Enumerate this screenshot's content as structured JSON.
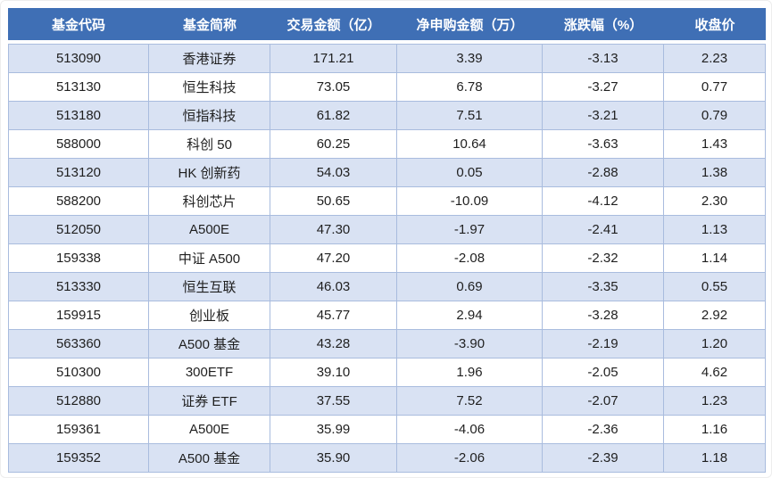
{
  "colors": {
    "header_bg": "#3f6fb5",
    "header_text": "#ffffff",
    "banded_row_bg": "#d9e2f3",
    "plain_row_bg": "#ffffff",
    "border": "#a9bcde",
    "body_text": "#1f1f1f"
  },
  "chart_data": {
    "type": "table",
    "headers": [
      "基金代码",
      "基金简称",
      "交易金额（亿）",
      "净申购金额（万）",
      "涨跌幅（%）",
      "收盘价"
    ],
    "rows": [
      [
        "513090",
        "香港证券",
        "171.21",
        "3.39",
        "-3.13",
        "2.23"
      ],
      [
        "513130",
        "恒生科技",
        "73.05",
        "6.78",
        "-3.27",
        "0.77"
      ],
      [
        "513180",
        "恒指科技",
        "61.82",
        "7.51",
        "-3.21",
        "0.79"
      ],
      [
        "588000",
        "科创 50",
        "60.25",
        "10.64",
        "-3.63",
        "1.43"
      ],
      [
        "513120",
        "HK 创新药",
        "54.03",
        "0.05",
        "-2.88",
        "1.38"
      ],
      [
        "588200",
        "科创芯片",
        "50.65",
        "-10.09",
        "-4.12",
        "2.30"
      ],
      [
        "512050",
        "A500E",
        "47.30",
        "-1.97",
        "-2.41",
        "1.13"
      ],
      [
        "159338",
        "中证 A500",
        "47.20",
        "-2.08",
        "-2.32",
        "1.14"
      ],
      [
        "513330",
        "恒生互联",
        "46.03",
        "0.69",
        "-3.35",
        "0.55"
      ],
      [
        "159915",
        "创业板",
        "45.77",
        "2.94",
        "-3.28",
        "2.92"
      ],
      [
        "563360",
        "A500 基金",
        "43.28",
        "-3.90",
        "-2.19",
        "1.20"
      ],
      [
        "510300",
        "300ETF",
        "39.10",
        "1.96",
        "-2.05",
        "4.62"
      ],
      [
        "512880",
        "证券 ETF",
        "37.55",
        "7.52",
        "-2.07",
        "1.23"
      ],
      [
        "159361",
        "A500E",
        "35.99",
        "-4.06",
        "-2.36",
        "1.16"
      ],
      [
        "159352",
        "A500 基金",
        "35.90",
        "-2.06",
        "-2.39",
        "1.18"
      ]
    ]
  }
}
